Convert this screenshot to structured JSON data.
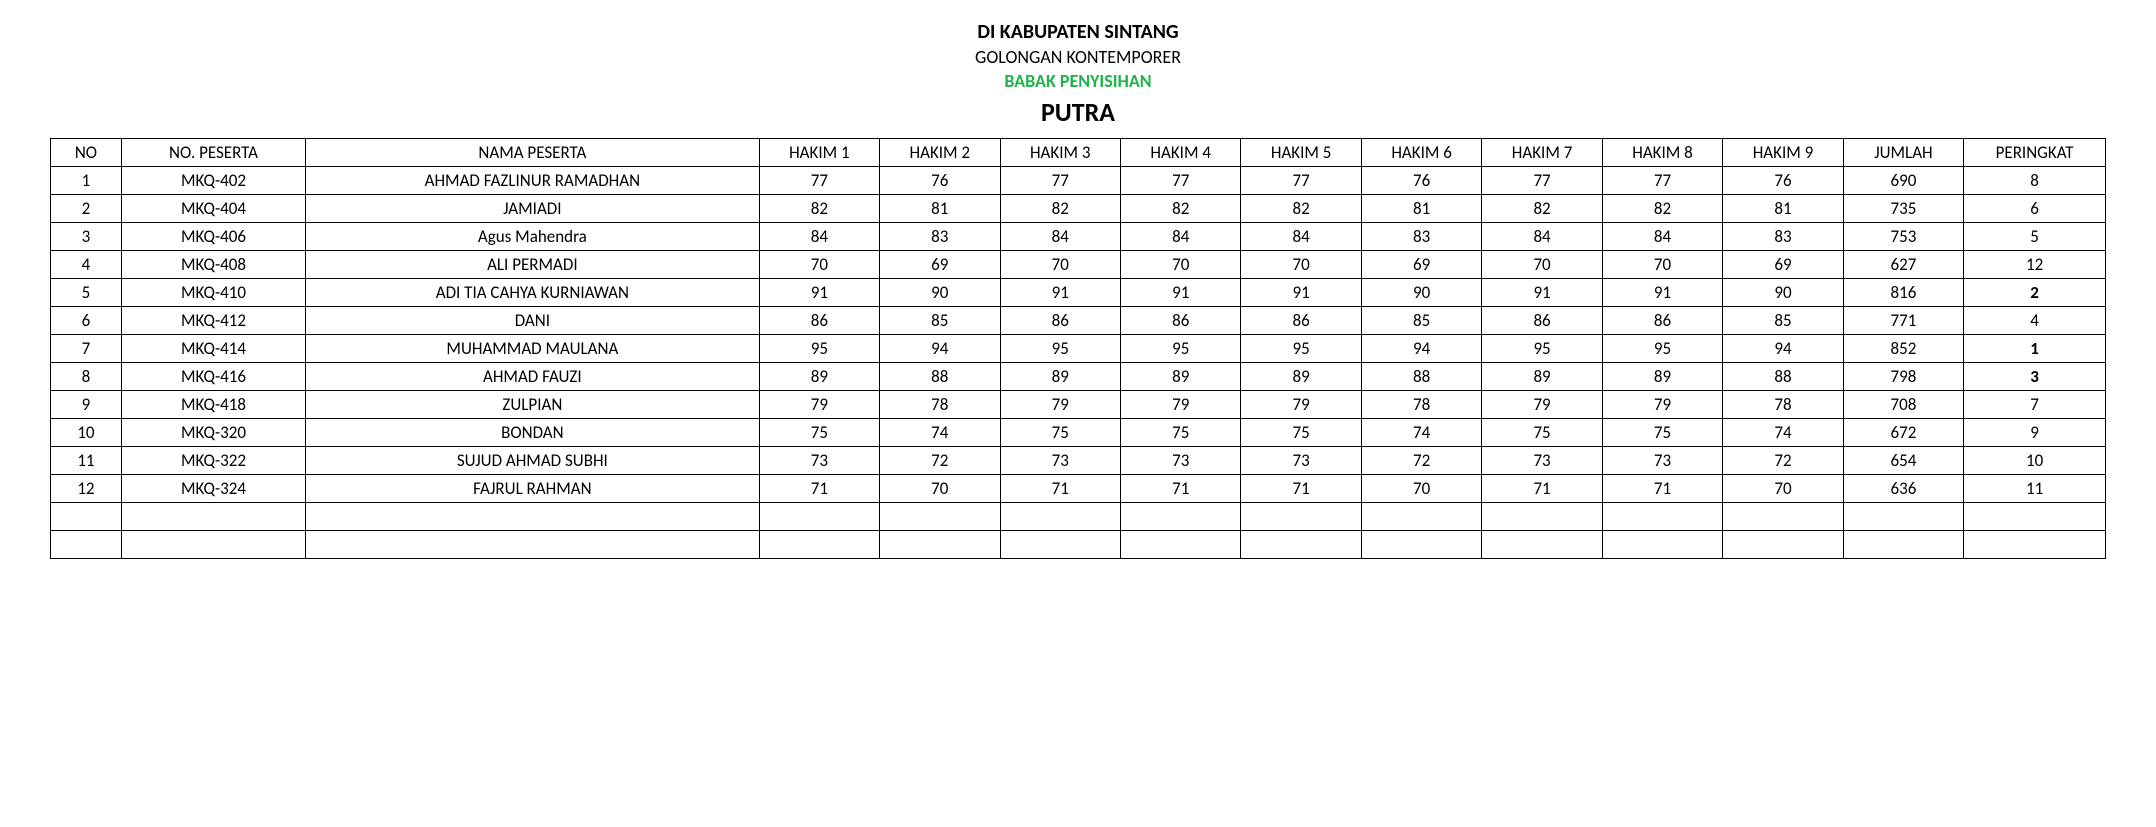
{
  "header": {
    "line1": "DI KABUPATEN SINTANG",
    "line2": "GOLONGAN KONTEMPORER",
    "line3": "BABAK PENYISIHAN",
    "line4": "PUTRA"
  },
  "table": {
    "columns": [
      "NO",
      "NO. PESERTA",
      "NAMA PESERTA",
      "HAKIM 1",
      "HAKIM 2",
      "HAKIM 3",
      "HAKIM 4",
      "HAKIM 5",
      "HAKIM 6",
      "HAKIM 7",
      "HAKIM 8",
      "HAKIM 9",
      "JUMLAH",
      "PERINGKAT"
    ],
    "rows": [
      {
        "no": "1",
        "peserta": "MKQ-402",
        "nama": "AHMAD FAZLINUR RAMADHAN",
        "h1": "77",
        "h2": "76",
        "h3": "77",
        "h4": "77",
        "h5": "77",
        "h6": "76",
        "h7": "77",
        "h8": "77",
        "h9": "76",
        "jumlah": "690",
        "peringkat": "8",
        "peringkat_bold": false
      },
      {
        "no": "2",
        "peserta": "MKQ-404",
        "nama": "JAMIADI",
        "h1": "82",
        "h2": "81",
        "h3": "82",
        "h4": "82",
        "h5": "82",
        "h6": "81",
        "h7": "82",
        "h8": "82",
        "h9": "81",
        "jumlah": "735",
        "peringkat": "6",
        "peringkat_bold": false
      },
      {
        "no": "3",
        "peserta": "MKQ-406",
        "nama": "Agus Mahendra",
        "h1": "84",
        "h2": "83",
        "h3": "84",
        "h4": "84",
        "h5": "84",
        "h6": "83",
        "h7": "84",
        "h8": "84",
        "h9": "83",
        "jumlah": "753",
        "peringkat": "5",
        "peringkat_bold": false
      },
      {
        "no": "4",
        "peserta": "MKQ-408",
        "nama": "ALI PERMADI",
        "h1": "70",
        "h2": "69",
        "h3": "70",
        "h4": "70",
        "h5": "70",
        "h6": "69",
        "h7": "70",
        "h8": "70",
        "h9": "69",
        "jumlah": "627",
        "peringkat": "12",
        "peringkat_bold": false
      },
      {
        "no": "5",
        "peserta": "MKQ-410",
        "nama": "ADI TIA CAHYA KURNIAWAN",
        "h1": "91",
        "h2": "90",
        "h3": "91",
        "h4": "91",
        "h5": "91",
        "h6": "90",
        "h7": "91",
        "h8": "91",
        "h9": "90",
        "jumlah": "816",
        "peringkat": "2",
        "peringkat_bold": true
      },
      {
        "no": "6",
        "peserta": "MKQ-412",
        "nama": "DANI",
        "h1": "86",
        "h2": "85",
        "h3": "86",
        "h4": "86",
        "h5": "86",
        "h6": "85",
        "h7": "86",
        "h8": "86",
        "h9": "85",
        "jumlah": "771",
        "peringkat": "4",
        "peringkat_bold": false
      },
      {
        "no": "7",
        "peserta": "MKQ-414",
        "nama": "MUHAMMAD MAULANA",
        "h1": "95",
        "h2": "94",
        "h3": "95",
        "h4": "95",
        "h5": "95",
        "h6": "94",
        "h7": "95",
        "h8": "95",
        "h9": "94",
        "jumlah": "852",
        "peringkat": "1",
        "peringkat_bold": true
      },
      {
        "no": "8",
        "peserta": "MKQ-416",
        "nama": "AHMAD FAUZI",
        "h1": "89",
        "h2": "88",
        "h3": "89",
        "h4": "89",
        "h5": "89",
        "h6": "88",
        "h7": "89",
        "h8": "89",
        "h9": "88",
        "jumlah": "798",
        "peringkat": "3",
        "peringkat_bold": true
      },
      {
        "no": "9",
        "peserta": "MKQ-418",
        "nama": "ZULPIAN",
        "h1": "79",
        "h2": "78",
        "h3": "79",
        "h4": "79",
        "h5": "79",
        "h6": "78",
        "h7": "79",
        "h8": "79",
        "h9": "78",
        "jumlah": "708",
        "peringkat": "7",
        "peringkat_bold": false
      },
      {
        "no": "10",
        "peserta": "MKQ-320",
        "nama": "BONDAN",
        "h1": "75",
        "h2": "74",
        "h3": "75",
        "h4": "75",
        "h5": "75",
        "h6": "74",
        "h7": "75",
        "h8": "75",
        "h9": "74",
        "jumlah": "672",
        "peringkat": "9",
        "peringkat_bold": false
      },
      {
        "no": "11",
        "peserta": "MKQ-322",
        "nama": "SUJUD AHMAD SUBHI",
        "h1": "73",
        "h2": "72",
        "h3": "73",
        "h4": "73",
        "h5": "73",
        "h6": "72",
        "h7": "73",
        "h8": "73",
        "h9": "72",
        "jumlah": "654",
        "peringkat": "10",
        "peringkat_bold": false
      },
      {
        "no": "12",
        "peserta": "MKQ-324",
        "nama": "FAJRUL RAHMAN",
        "h1": "71",
        "h2": "70",
        "h3": "71",
        "h4": "71",
        "h5": "71",
        "h6": "70",
        "h7": "71",
        "h8": "71",
        "h9": "70",
        "jumlah": "636",
        "peringkat": "11",
        "peringkat_bold": false
      }
    ],
    "empty_rows": 2,
    "column_widths": {
      "no": 50,
      "peserta": 130,
      "nama": 320,
      "hakim": 85,
      "jumlah": 85,
      "peringkat": 100
    },
    "border_color": "#000000",
    "background_color": "#ffffff",
    "font_size": 17
  },
  "colors": {
    "text": "#000000",
    "green_text": "#22b14c",
    "background": "#ffffff"
  }
}
